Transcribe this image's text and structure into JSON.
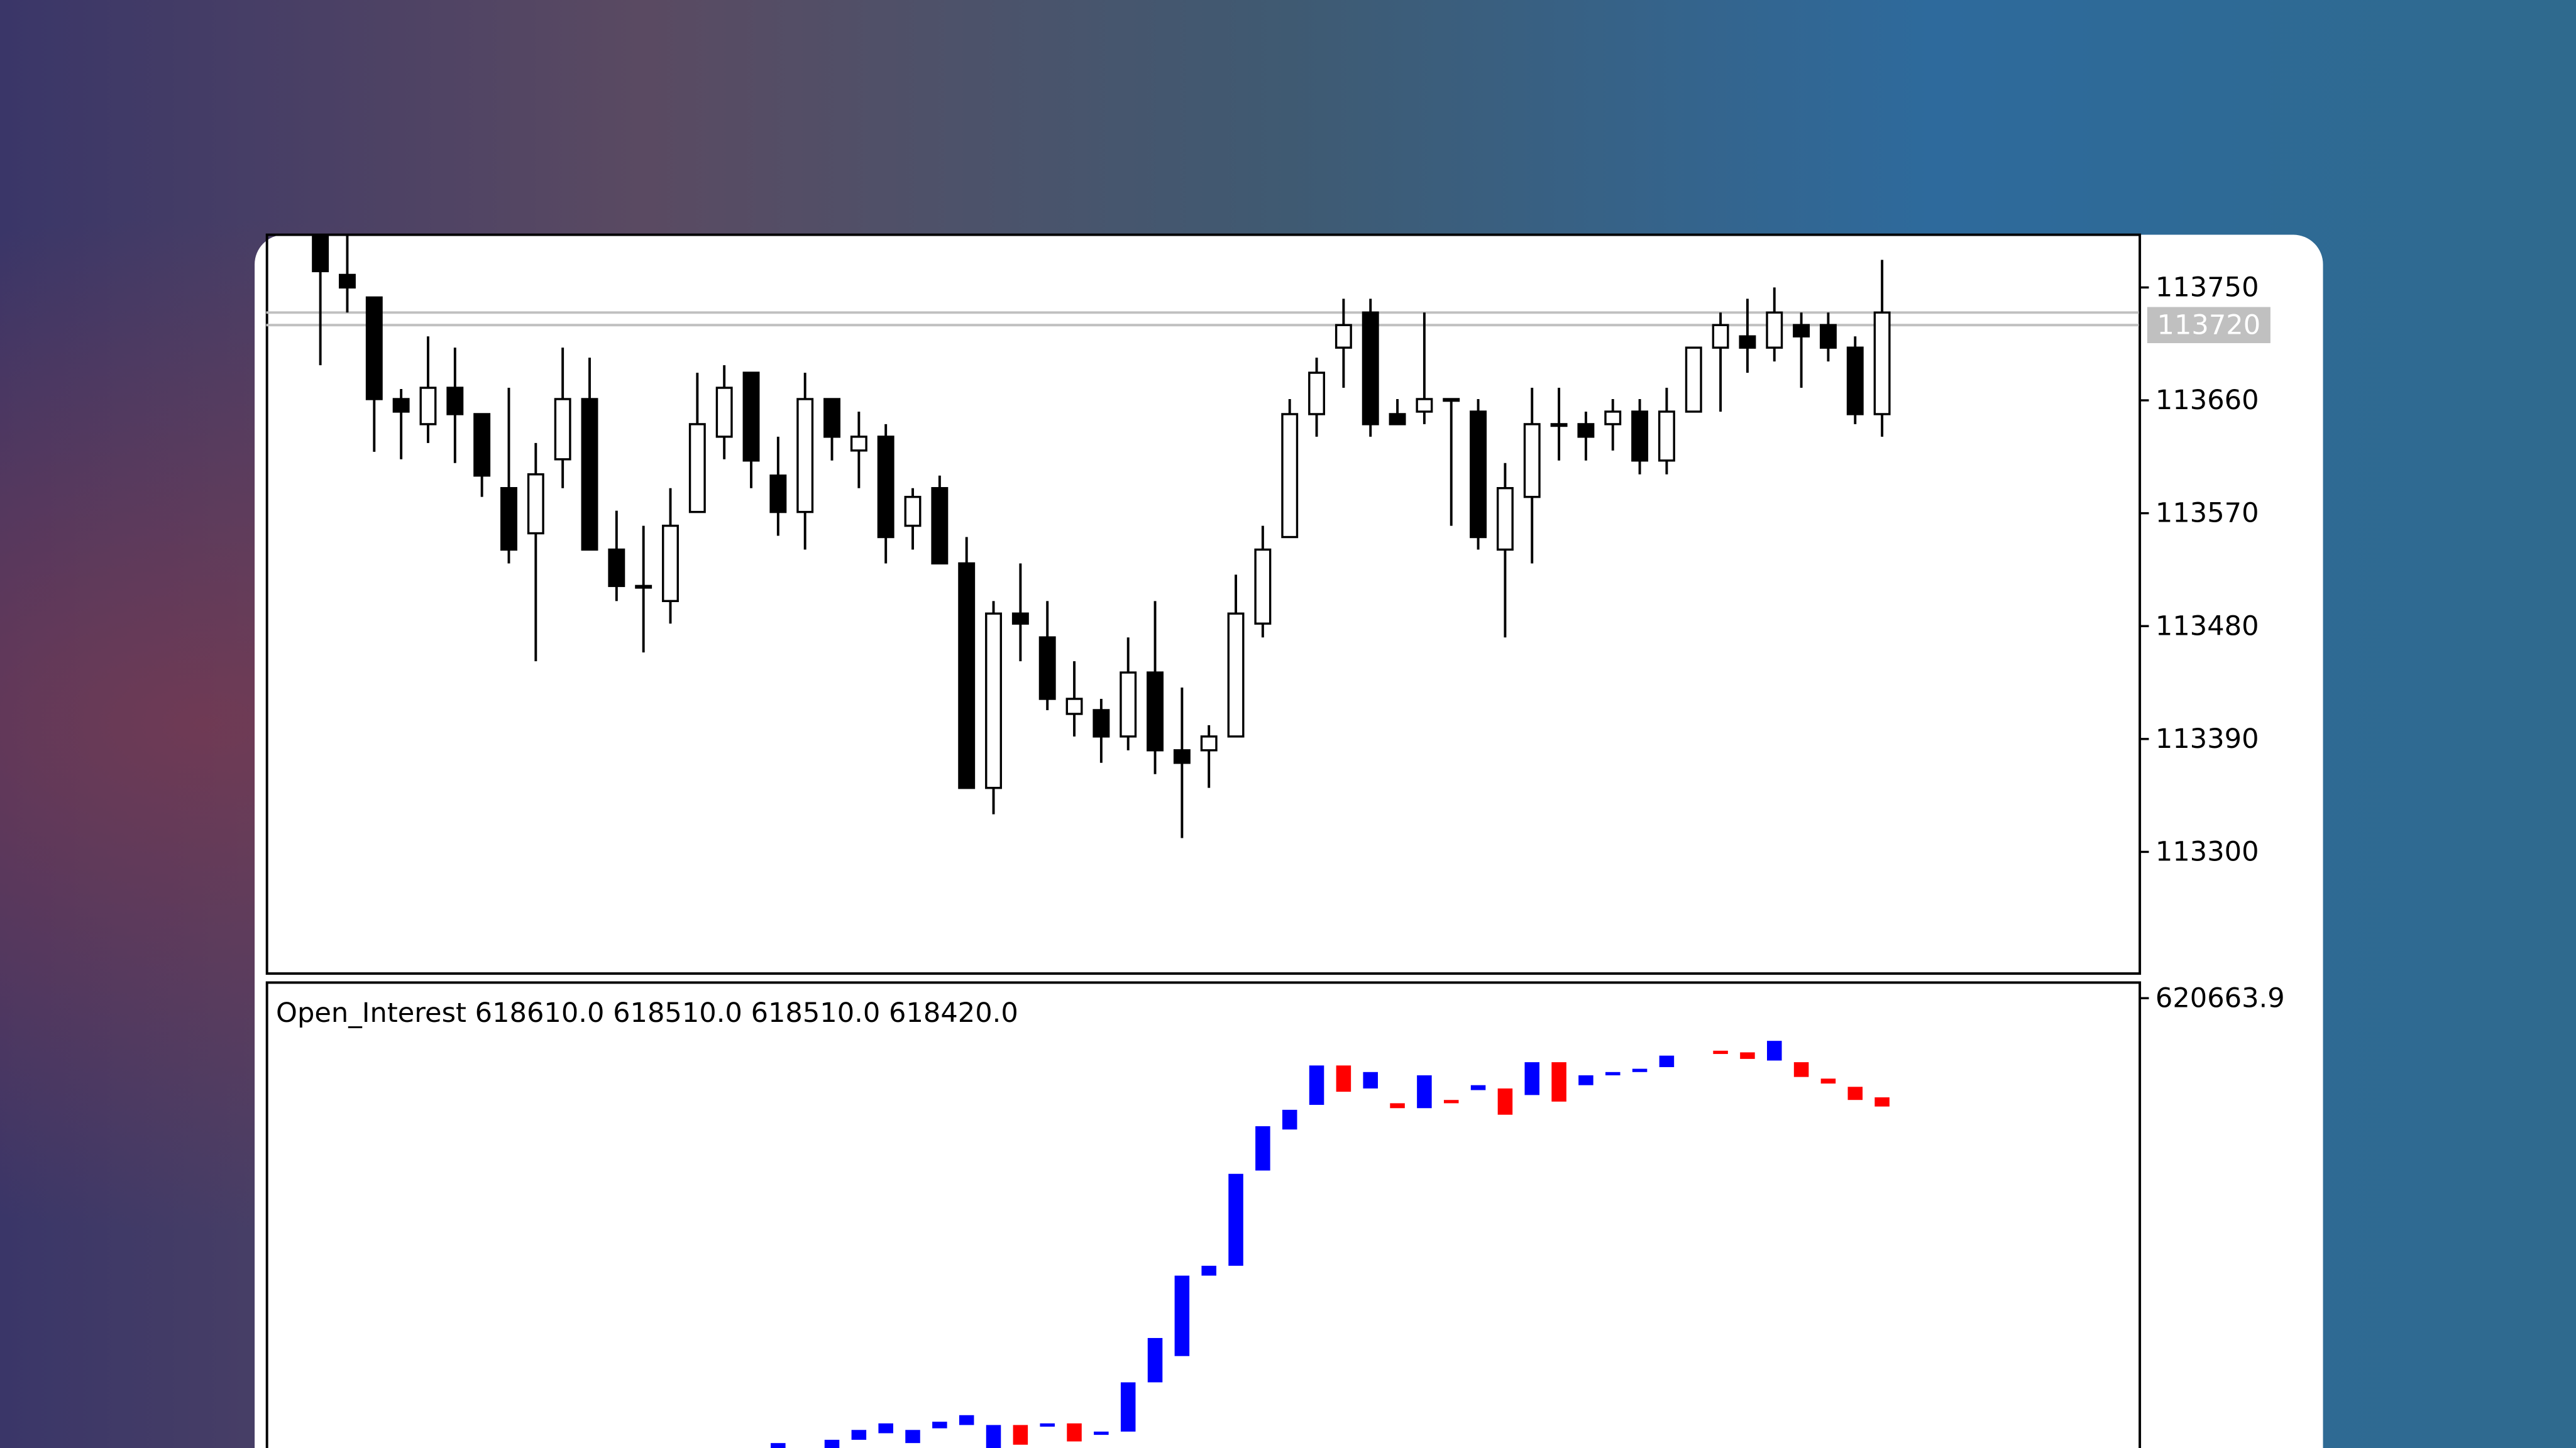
{
  "chart_data": [
    {
      "type": "candlestick",
      "ylim": [
        113203,
        113792
      ],
      "yticks": [
        113300,
        113390,
        113480,
        113570,
        113660,
        113750
      ],
      "price_lines": [
        113730,
        113720
      ],
      "up_color": "#ffffff",
      "down_color": "#000000",
      "line_color": "#000000",
      "open": [
        113792,
        113760,
        113742,
        113661,
        113641,
        113670,
        113649,
        113590,
        113554,
        113613,
        113661,
        113541,
        113512,
        113500,
        113571,
        113631,
        113682,
        113600,
        113571,
        113661,
        113620,
        113631,
        113560,
        113590,
        113530,
        113351,
        113490,
        113471,
        113410,
        113413,
        113392,
        113443,
        113381,
        113381,
        113392,
        113482,
        113551,
        113649,
        113702,
        113730,
        113649,
        113651,
        113661,
        113651,
        113541,
        113583,
        113641,
        113641,
        113641,
        113651,
        113612,
        113651,
        113702,
        113711,
        113702,
        113720,
        113720,
        113702,
        113649
      ],
      "high": [
        113792,
        113792,
        113742,
        113669,
        113711,
        113702,
        113649,
        113670,
        113626,
        113702,
        113694,
        113572,
        113560,
        113590,
        113682,
        113688,
        113682,
        113631,
        113682,
        113661,
        113651,
        113641,
        113590,
        113600,
        113551,
        113500,
        113530,
        113500,
        113452,
        113422,
        113471,
        113500,
        113431,
        113401,
        113521,
        113560,
        113661,
        113694,
        113741,
        113741,
        113661,
        113730,
        113661,
        113661,
        113610,
        113670,
        113670,
        113651,
        113661,
        113661,
        113670,
        113702,
        113730,
        113741,
        113750,
        113730,
        113730,
        113711,
        113772
      ],
      "low": [
        113688,
        113730,
        113619,
        113613,
        113626,
        113610,
        113583,
        113530,
        113452,
        113590,
        113541,
        113500,
        113459,
        113482,
        113571,
        113613,
        113590,
        113552,
        113541,
        113612,
        113590,
        113530,
        113541,
        113530,
        113351,
        113330,
        113452,
        113413,
        113392,
        113371,
        113381,
        113362,
        113311,
        113351,
        113392,
        113471,
        113551,
        113631,
        113670,
        113631,
        113641,
        113641,
        113560,
        113541,
        113471,
        113530,
        113612,
        113612,
        113620,
        113601,
        113601,
        113651,
        113651,
        113682,
        113691,
        113670,
        113691,
        113641,
        113631
      ],
      "close": [
        113763,
        113750,
        113661,
        113651,
        113670,
        113649,
        113600,
        113541,
        113601,
        113661,
        113541,
        113512,
        113512,
        113560,
        113641,
        113670,
        113612,
        113571,
        113661,
        113631,
        113631,
        113551,
        113583,
        113530,
        113351,
        113490,
        113482,
        113422,
        113422,
        113392,
        113443,
        113381,
        113371,
        113392,
        113490,
        113541,
        113649,
        113682,
        113720,
        113641,
        113641,
        113661,
        113661,
        113551,
        113590,
        113641,
        113641,
        113631,
        113651,
        113612,
        113651,
        113702,
        113720,
        113702,
        113730,
        113711,
        113702,
        113649,
        113730
      ]
    },
    {
      "type": "range_bar",
      "title": "Open_Interest 618610.0 618510.0 618510.0 618420.0",
      "ylim": [
        611348,
        621004
      ],
      "yticks": [
        620663.9
      ],
      "up_color": "#0000ff",
      "down_color": "#ff0000",
      "open": [
        null,
        null,
        null,
        null,
        null,
        null,
        null,
        null,
        null,
        null,
        null,
        null,
        null,
        null,
        null,
        null,
        null,
        611348,
        null,
        611348,
        611518,
        611654,
        611450,
        611756,
        611824,
        611348,
        611824,
        611790,
        611858,
        611620,
        611688,
        612708,
        613252,
        614918,
        615122,
        617094,
        617944,
        618454,
        619270,
        618794,
        618488,
        618386,
        618556,
        618760,
        618794,
        618658,
        619338,
        618862,
        619066,
        619134,
        619236,
        null,
        619576,
        619542,
        619372,
        619338,
        618998,
        618828,
        618610
      ],
      "close": [
        null,
        null,
        null,
        null,
        null,
        null,
        null,
        null,
        null,
        null,
        null,
        null,
        null,
        null,
        null,
        null,
        null,
        611450,
        null,
        611518,
        611722,
        611858,
        611722,
        611892,
        612028,
        611824,
        611416,
        611858,
        611484,
        611688,
        612708,
        613626,
        614918,
        615122,
        617026,
        618012,
        618352,
        619270,
        618726,
        619134,
        618386,
        619066,
        618488,
        618862,
        618250,
        619338,
        618522,
        619066,
        619134,
        619202,
        619474,
        null,
        619508,
        619406,
        619780,
        619032,
        618896,
        618556,
        618420
      ]
    }
  ]
}
